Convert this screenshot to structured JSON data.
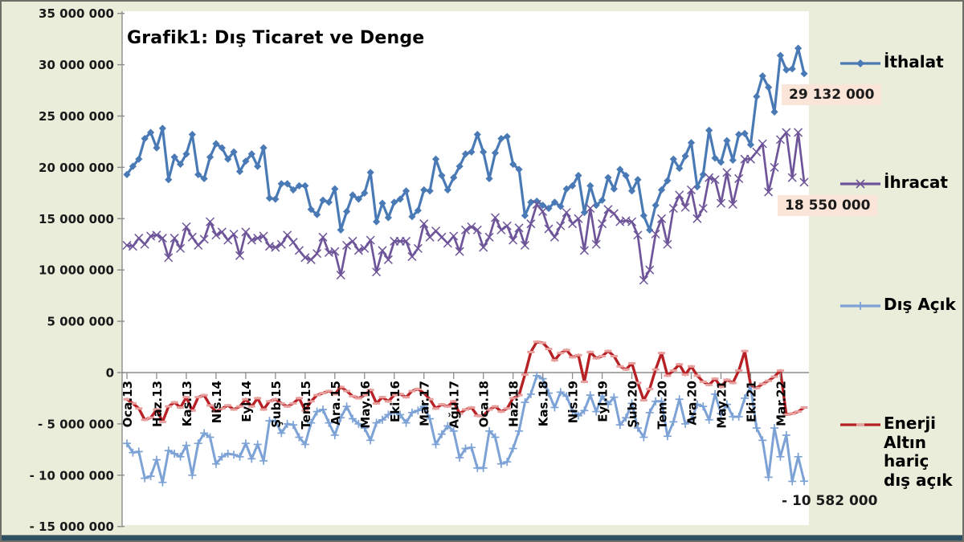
{
  "window": {
    "background_color": "#E9EDDA",
    "plot_background_color": "#FFFFFF",
    "border_color": "#6e6e66",
    "bottom_bar_color": "#2D5062",
    "label_highlight_color": "#FBE5D8"
  },
  "title": "Grafik1: Dış Ticaret ve Denge",
  "data_labels": {
    "ithalat_last": "29 132 000",
    "ihracat_last": "18 550 000",
    "dis_acik_last": "-  10 582 000"
  },
  "chart_data": {
    "type": "line",
    "title": "Grafik1: Dış Ticaret ve Denge",
    "ylim": [
      -15000000,
      35000000
    ],
    "grid": false,
    "legend_position": "right",
    "y_tick_values": [
      35000000,
      30000000,
      25000000,
      20000000,
      15000000,
      10000000,
      5000000,
      0,
      -5000000,
      -10000000,
      -15000000
    ],
    "y_tick_labels": [
      "35 000 000",
      "30 000 000",
      "25 000 000",
      "20 000 000",
      "15 000 000",
      "10 000 000",
      "5 000 000",
      "0",
      "- 5 000 000",
      "- 10 000 000",
      "- 15 000 000"
    ],
    "x_tick_interval": 5,
    "x_tick_labels": [
      "Oca.13",
      "Haz.13",
      "Kas.13",
      "Nis.14",
      "Eyl.14",
      "Şub.15",
      "Tem.15",
      "Ara.15",
      "May.16",
      "Eki.16",
      "Mar.17",
      "Ağu.17",
      "Oca.18",
      "Haz.18",
      "Kas.18",
      "Nis.19",
      "Eyl.19",
      "Şub.20",
      "Tem.20",
      "Ara.20",
      "May.21",
      "Eki.21",
      "Mar.22"
    ],
    "x_range_months": "Oca.13 - Tem.22",
    "n_points": 115,
    "axis_color": "#8C8C8C",
    "series": [
      {
        "name": "İthalat",
        "color": "#4A7AB5",
        "marker": "diamond",
        "line_width": 3.2,
        "values": [
          19300000,
          20100000,
          20800000,
          22800000,
          23400000,
          21900000,
          23800000,
          18800000,
          21000000,
          20300000,
          21300000,
          23200000,
          19300000,
          18900000,
          21000000,
          22300000,
          21900000,
          20800000,
          21500000,
          19600000,
          20600000,
          21300000,
          20100000,
          21900000,
          17000000,
          16900000,
          18400000,
          18400000,
          17800000,
          18200000,
          18200000,
          15900000,
          15400000,
          16800000,
          16600000,
          17900000,
          13900000,
          15700000,
          17300000,
          16900000,
          17500000,
          19500000,
          14700000,
          16500000,
          15100000,
          16600000,
          16900000,
          17700000,
          15200000,
          15800000,
          17800000,
          17700000,
          20800000,
          19200000,
          17800000,
          19000000,
          20100000,
          21300000,
          21500000,
          23200000,
          21500000,
          18900000,
          21400000,
          22800000,
          23000000,
          20300000,
          19800000,
          15300000,
          16600000,
          16700000,
          16300000,
          16000000,
          16600000,
          16200000,
          17900000,
          18200000,
          19200000,
          15600000,
          18200000,
          16300000,
          16800000,
          19000000,
          17900000,
          19800000,
          19200000,
          17700000,
          18800000,
          15300000,
          13900000,
          16300000,
          17800000,
          18700000,
          20800000,
          19900000,
          21100000,
          22400000,
          18100000,
          19300000,
          23600000,
          20900000,
          20500000,
          22600000,
          20700000,
          23200000,
          23300000,
          22200000,
          26900000,
          28900000,
          27800000,
          25400000,
          30900000,
          29500000,
          29600000,
          31600000,
          29132000
        ]
      },
      {
        "name": "İhracat",
        "color": "#6E5599",
        "marker": "x",
        "line_width": 2.7,
        "values": [
          12400000,
          12300000,
          13100000,
          12500000,
          13300000,
          13400000,
          13100000,
          11200000,
          13100000,
          12100000,
          14200000,
          13200000,
          12400000,
          13000000,
          14700000,
          13400000,
          13700000,
          12900000,
          13500000,
          11400000,
          13700000,
          12900000,
          13100000,
          13300000,
          12300000,
          12200000,
          12500000,
          13400000,
          12700000,
          11900000,
          11200000,
          11000000,
          11600000,
          13200000,
          11700000,
          11800000,
          9500000,
          12400000,
          12800000,
          11900000,
          12100000,
          12900000,
          9800000,
          11900000,
          11000000,
          12800000,
          12800000,
          12800000,
          11300000,
          12100000,
          14500000,
          13200000,
          13800000,
          13200000,
          12600000,
          13300000,
          11800000,
          13900000,
          14200000,
          13900000,
          12200000,
          13200000,
          15100000,
          13900000,
          14300000,
          12900000,
          14100000,
          12400000,
          14500000,
          16400000,
          15700000,
          14000000,
          13200000,
          14300000,
          15600000,
          14500000,
          15000000,
          11900000,
          16000000,
          12500000,
          14500000,
          15900000,
          15500000,
          14700000,
          14800000,
          14700000,
          13400000,
          9000000,
          10000000,
          13500000,
          15000000,
          12500000,
          16000000,
          17300000,
          16100000,
          17800000,
          15000000,
          16000000,
          19000000,
          18800000,
          16500000,
          19500000,
          16400000,
          18900000,
          20800000,
          20800000,
          21500000,
          22300000,
          17600000,
          20000000,
          22700000,
          23400000,
          19000000,
          23400000,
          18550000
        ]
      },
      {
        "name": "Dış Açık",
        "color": "#7DA2D6",
        "marker": "plus",
        "line_width": 3.0,
        "values": [
          -6900000,
          -7800000,
          -7700000,
          -10300000,
          -10100000,
          -8500000,
          -10700000,
          -7600000,
          -7900000,
          -8200000,
          -7100000,
          -10000000,
          -6900000,
          -5900000,
          -6300000,
          -8900000,
          -8200000,
          -7900000,
          -8000000,
          -8200000,
          -6900000,
          -8400000,
          -7000000,
          -8600000,
          -4700000,
          -4700000,
          -5900000,
          -5000000,
          -5100000,
          -6300000,
          -7000000,
          -4900000,
          -3800000,
          -3600000,
          -4900000,
          -6100000,
          -4400000,
          -3300000,
          -4500000,
          -5000000,
          -5400000,
          -6600000,
          -4900000,
          -4600000,
          -4100000,
          -3800000,
          -4100000,
          -4900000,
          -3900000,
          -3700000,
          -3300000,
          -4500000,
          -7000000,
          -6000000,
          -5200000,
          -5700000,
          -8300000,
          -7400000,
          -7300000,
          -9300000,
          -9300000,
          -5700000,
          -6300000,
          -8900000,
          -8700000,
          -7400000,
          -5700000,
          -2900000,
          -2100000,
          -300000,
          -600000,
          -2000000,
          -3400000,
          -1900000,
          -2300000,
          -3700000,
          -4200000,
          -3700000,
          -2200000,
          -3800000,
          -2300000,
          -3100000,
          -2400000,
          -5100000,
          -4400000,
          -3000000,
          -5400000,
          -6300000,
          -3900000,
          -2800000,
          -2800000,
          -6200000,
          -4800000,
          -2600000,
          -5000000,
          -4600000,
          -3100000,
          -3300000,
          -4600000,
          -2100000,
          -4000000,
          -3100000,
          -4300000,
          -4300000,
          -2500000,
          -1400000,
          -5400000,
          -6600000,
          -10200000,
          -5400000,
          -8200000,
          -6100000,
          -10600000,
          -8200000,
          -10582000
        ]
      },
      {
        "name": "Enerji Altın hariç dış açık",
        "color": "#B72126",
        "marker": "dash",
        "marker_color": "#E8A09E",
        "line_width": 3.4,
        "values": [
          -2600000,
          -3000000,
          -3500000,
          -4600000,
          -4400000,
          -3600000,
          -4800000,
          -3300000,
          -2900000,
          -3400000,
          -2400000,
          -3700000,
          -2400000,
          -2200000,
          -3200000,
          -3800000,
          -3500000,
          -3200000,
          -3600000,
          -3300000,
          -2600000,
          -3300000,
          -2500000,
          -3600000,
          -2800000,
          -2600000,
          -3000000,
          -3300000,
          -3000000,
          -2500000,
          -3700000,
          -2800000,
          -2200000,
          -2000000,
          -1800000,
          -2100000,
          -1400000,
          -1800000,
          -2300000,
          -2500000,
          -2200000,
          -1700000,
          -3000000,
          -2400000,
          -2800000,
          -2200000,
          -2100000,
          -2400000,
          -1800000,
          -1600000,
          -2000000,
          -2600000,
          -3500000,
          -3100000,
          -3300000,
          -2800000,
          -4000000,
          -3600000,
          -3400000,
          -4200000,
          -4200000,
          -3600000,
          -3300000,
          -3800000,
          -3500000,
          -2500000,
          -2200000,
          -200000,
          2000000,
          3000000,
          2900000,
          2300000,
          1200000,
          1900000,
          2200000,
          1500000,
          1700000,
          -900000,
          2000000,
          1400000,
          1600000,
          2100000,
          1600000,
          600000,
          300000,
          900000,
          -1000000,
          -2700000,
          -1600000,
          300000,
          1900000,
          -300000,
          200000,
          800000,
          -200000,
          600000,
          -300000,
          -900000,
          -1200000,
          -600000,
          -1400000,
          -700000,
          -1000000,
          200000,
          2100000,
          -1200000,
          -1500000,
          -1100000,
          -800000,
          -400000,
          200000,
          -4100000,
          -4000000,
          -3800000,
          -3400000
        ]
      }
    ],
    "annotations": [
      "29 132 000",
      "18 550 000",
      "-  10 582 000"
    ]
  }
}
